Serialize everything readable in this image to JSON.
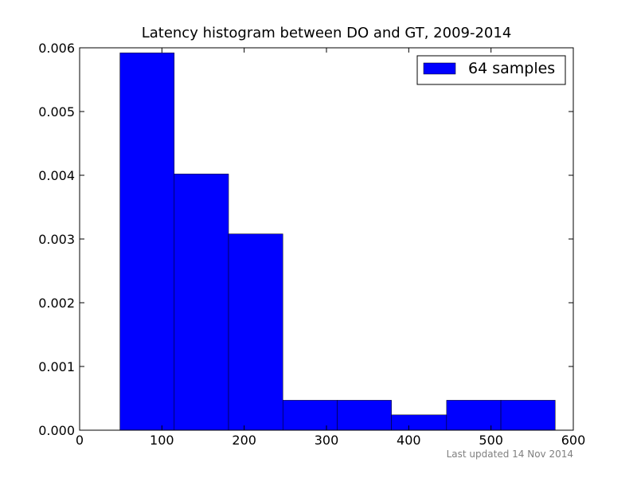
{
  "chart_data": {
    "type": "histogram",
    "title": "Latency histogram between DO and GT, 2009-2014",
    "annotation": "Last updated 14 Nov 2014",
    "bins": [
      49,
      115,
      181,
      247,
      313,
      379,
      446,
      512,
      578
    ],
    "series": [
      {
        "name": "64 samples",
        "color": "#0000ff",
        "values": [
          0.00592,
          0.00402,
          0.00308,
          0.00047,
          0.00047,
          0.00024,
          0.00047,
          0.00047
        ]
      }
    ],
    "xlim": [
      0,
      600
    ],
    "xticks": [
      0,
      100,
      200,
      300,
      400,
      500,
      600
    ],
    "ylim": [
      0,
      0.006
    ],
    "yticks": [
      {
        "value": 0,
        "label": "0.000"
      },
      {
        "value": 0.001,
        "label": "0.001"
      },
      {
        "value": 0.002,
        "label": "0.002"
      },
      {
        "value": 0.003,
        "label": "0.003"
      },
      {
        "value": 0.004,
        "label": "0.004"
      },
      {
        "value": 0.005,
        "label": "0.005"
      },
      {
        "value": 0.006,
        "label": "0.006"
      }
    ],
    "legend": "upper right",
    "grid": false
  }
}
